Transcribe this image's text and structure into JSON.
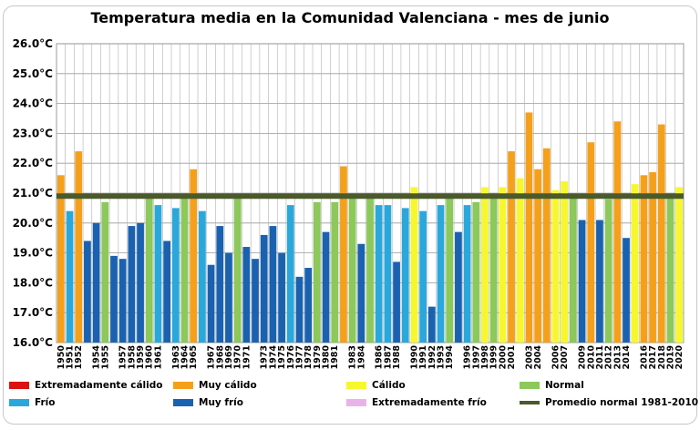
{
  "chart_data": {
    "type": "bar",
    "title": "Temperatura media en la Comunidad Valenciana - mes de junio",
    "xlabel": "",
    "ylabel": "",
    "ylim": [
      16.0,
      26.0
    ],
    "yticks": [
      16.0,
      17.0,
      18.0,
      19.0,
      20.0,
      21.0,
      22.0,
      23.0,
      24.0,
      25.0,
      26.0
    ],
    "ytick_suffix": "°C",
    "grid": true,
    "reference_line": {
      "name": "Promedio normal 1981-2010",
      "value": 20.9,
      "color": "#4a5a2a"
    },
    "categories": [
      "1950",
      "1951",
      "1952",
      "1953",
      "1954",
      "1955",
      "1956",
      "1957",
      "1958",
      "1959",
      "1960",
      "1961",
      "1962",
      "1963",
      "1964",
      "1965",
      "1966",
      "1967",
      "1968",
      "1969",
      "1970",
      "1971",
      "1972",
      "1973",
      "1974",
      "1975",
      "1976",
      "1977",
      "1978",
      "1979",
      "1980",
      "1981",
      "1982",
      "1983",
      "1984",
      "1985",
      "1986",
      "1987",
      "1988",
      "1989",
      "1990",
      "1991",
      "1992",
      "1993",
      "1994",
      "1995",
      "1996",
      "1997",
      "1998",
      "1999",
      "2000",
      "2001",
      "2002",
      "2003",
      "2004",
      "2005",
      "2006",
      "2007",
      "2008",
      "2009",
      "2010",
      "2011",
      "2012",
      "2013",
      "2014",
      "2015",
      "2016",
      "2017",
      "2018",
      "2019",
      "2020"
    ],
    "tick_labels": [
      "1950",
      "1951",
      "1952",
      "1954",
      "1955",
      "1957",
      "1958",
      "1959",
      "1960",
      "1961",
      "1963",
      "1964",
      "1965",
      "1967",
      "1968",
      "1969",
      "1970",
      "1971",
      "1973",
      "1974",
      "1975",
      "1976",
      "1977",
      "1978",
      "1979",
      "1980",
      "1981",
      "1983",
      "1984",
      "1986",
      "1987",
      "1988",
      "1990",
      "1991",
      "1992",
      "1993",
      "1994",
      "1996",
      "1997",
      "1998",
      "1999",
      "2000",
      "2001",
      "2003",
      "2004",
      "2006",
      "2007",
      "2009",
      "2010",
      "2011",
      "2012",
      "2013",
      "2014",
      "2016",
      "2017",
      "2018",
      "2019",
      "2020"
    ],
    "values": [
      21.6,
      20.4,
      22.4,
      19.4,
      20.0,
      20.7,
      18.9,
      18.8,
      19.9,
      20.0,
      21.0,
      20.6,
      19.4,
      20.5,
      21.0,
      21.8,
      20.4,
      18.6,
      19.9,
      19.0,
      20.9,
      19.2,
      18.8,
      19.6,
      19.9,
      19.0,
      20.6,
      18.2,
      18.5,
      20.7,
      19.7,
      20.7,
      21.9,
      20.9,
      19.3,
      21.0,
      20.6,
      20.6,
      18.7,
      20.5,
      21.2,
      20.4,
      17.2,
      20.6,
      20.9,
      19.7,
      20.6,
      20.7,
      21.2,
      21.0,
      21.2,
      22.4,
      21.5,
      23.7,
      21.8,
      22.5,
      21.1,
      21.4,
      20.9,
      20.1,
      22.7,
      20.1,
      20.8,
      23.4,
      19.5,
      21.3,
      21.6,
      21.7,
      23.3,
      21.0,
      21.2
    ],
    "classes": [
      "MC",
      "F",
      "MC",
      "MF",
      "MF",
      "N",
      "MF",
      "MF",
      "MF",
      "MF",
      "N",
      "F",
      "MF",
      "F",
      "N",
      "MC",
      "F",
      "MF",
      "MF",
      "MF",
      "N",
      "MF",
      "MF",
      "MF",
      "MF",
      "MF",
      "F",
      "MF",
      "MF",
      "N",
      "MF",
      "N",
      "MC",
      "N",
      "MF",
      "N",
      "F",
      "F",
      "MF",
      "F",
      "C",
      "F",
      "MF",
      "F",
      "N",
      "MF",
      "F",
      "N",
      "C",
      "N",
      "C",
      "MC",
      "C",
      "MC",
      "MC",
      "MC",
      "C",
      "C",
      "N",
      "MF",
      "MC",
      "MF",
      "N",
      "MC",
      "MF",
      "C",
      "MC",
      "MC",
      "MC",
      "N",
      "C"
    ],
    "legend_position": "bottom",
    "legend": [
      {
        "key": "EC",
        "label": "Extremadamente cálido",
        "color": "#dd1111"
      },
      {
        "key": "MC",
        "label": "Muy cálido",
        "color": "#f5a01a"
      },
      {
        "key": "C",
        "label": "Cálido",
        "color": "#f7f72e"
      },
      {
        "key": "N",
        "label": "Normal",
        "color": "#8cc85a"
      },
      {
        "key": "F",
        "label": "Frío",
        "color": "#2aa8dc"
      },
      {
        "key": "MF",
        "label": "Muy frío",
        "color": "#1a62b0"
      },
      {
        "key": "EF",
        "label": "Extremadamente frío",
        "color": "#e8b4e8"
      }
    ]
  }
}
